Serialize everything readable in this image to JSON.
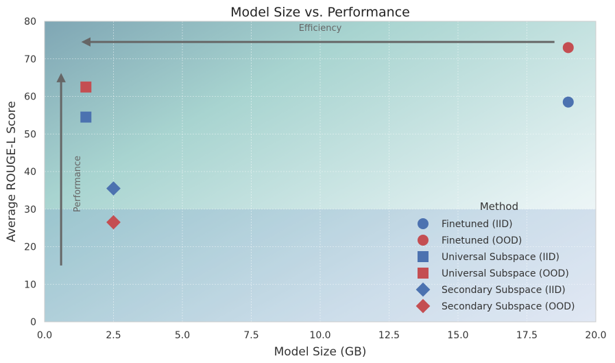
{
  "chart_data": {
    "type": "scatter",
    "title": "Model Size vs. Performance",
    "xlabel": "Model Size (GB)",
    "ylabel": "Average ROUGE-L Score",
    "xlim": [
      0,
      20
    ],
    "ylim": [
      0,
      80
    ],
    "x_ticks": [
      0,
      2.5,
      5,
      7.5,
      10,
      12.5,
      15,
      17.5,
      20
    ],
    "x_tick_labels": [
      "0.0",
      "2.5",
      "5.0",
      "7.5",
      "10.0",
      "12.5",
      "15.0",
      "17.5",
      "20.0"
    ],
    "y_ticks": [
      0,
      10,
      20,
      30,
      40,
      50,
      60,
      70,
      80
    ],
    "y_tick_labels": [
      "0",
      "10",
      "20",
      "30",
      "40",
      "50",
      "60",
      "70",
      "80"
    ],
    "grid": true,
    "legend_title": "Method",
    "legend_position": "lower-right",
    "series": [
      {
        "name": "Finetuned (IID)",
        "marker": "circle",
        "color": "#4c72b0",
        "x": [
          19.0
        ],
        "y": [
          58.5
        ]
      },
      {
        "name": "Finetuned (OOD)",
        "marker": "circle",
        "color": "#c44e52",
        "x": [
          19.0
        ],
        "y": [
          73.0
        ]
      },
      {
        "name": "Universal Subspace (IID)",
        "marker": "square",
        "color": "#4c72b0",
        "x": [
          1.5
        ],
        "y": [
          54.5
        ]
      },
      {
        "name": "Universal Subspace (OOD)",
        "marker": "square",
        "color": "#c44e52",
        "x": [
          1.5
        ],
        "y": [
          62.5
        ]
      },
      {
        "name": "Secondary Subspace (IID)",
        "marker": "diamond",
        "color": "#4c72b0",
        "x": [
          2.5
        ],
        "y": [
          35.5
        ]
      },
      {
        "name": "Secondary Subspace (OOD)",
        "marker": "diamond",
        "color": "#c44e52",
        "x": [
          2.5
        ],
        "y": [
          26.5
        ]
      }
    ],
    "annotations": [
      {
        "text": "Efficiency",
        "arrow_from": [
          18.5,
          74.5
        ],
        "arrow_to": [
          1.5,
          74.5
        ]
      },
      {
        "text": "Performance",
        "arrow_from": [
          0.6,
          15
        ],
        "arrow_to": [
          0.6,
          65
        ]
      }
    ],
    "shaded_region": {
      "ymax": 30
    },
    "colors": {
      "iid": "#4c72b0",
      "ood": "#c44e52",
      "arrow": "#666666"
    }
  }
}
